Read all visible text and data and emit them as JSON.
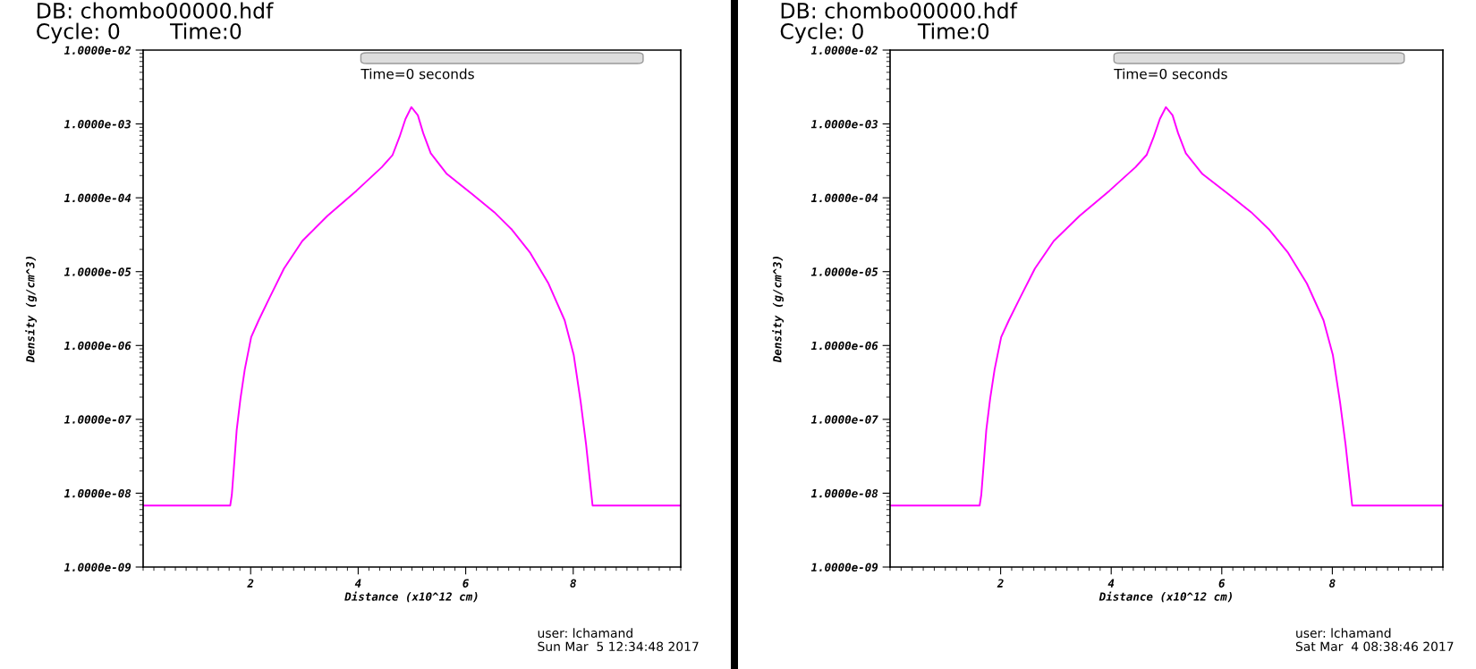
{
  "chart_data": [
    {
      "type": "line",
      "xlabel": "Distance (x10^12 cm)",
      "ylabel": "Density (g/cm^3)",
      "log": "y",
      "grid": false,
      "legend": false,
      "marker": "none",
      "line_style": "solid",
      "xlim": [
        0,
        10
      ],
      "xticks": [
        2,
        4,
        6,
        8
      ],
      "ylim": [
        1e-09,
        0.01
      ],
      "yticks": [
        {
          "value": 1e-09,
          "label": "1.0000e-09"
        },
        {
          "value": 1e-08,
          "label": "1.0000e-08"
        },
        {
          "value": 1e-07,
          "label": "1.0000e-07"
        },
        {
          "value": 1e-06,
          "label": "1.0000e-06"
        },
        {
          "value": 1e-05,
          "label": "1.0000e-05"
        },
        {
          "value": 0.0001,
          "label": "1.0000e-04"
        },
        {
          "value": 0.001,
          "label": "1.0000e-03"
        },
        {
          "value": 0.01,
          "label": "1.0000e-02"
        }
      ],
      "x": [
        0,
        1.62,
        1.65,
        1.69,
        1.74,
        1.81,
        1.89,
        2.01,
        2.15,
        2.35,
        2.62,
        2.96,
        3.43,
        3.97,
        4.44,
        4.64,
        4.77,
        4.88,
        4.99,
        5.11,
        5.21,
        5.35,
        5.65,
        6.12,
        6.53,
        6.86,
        7.2,
        7.54,
        7.84,
        8.01,
        8.14,
        8.24,
        8.31,
        8.36,
        10
      ],
      "series": [
        {
          "color": "#ff00ff",
          "values": [
            6.8e-09,
            6.8e-09,
            9.5e-09,
            2.3e-08,
            7.1e-08,
            1.9e-07,
            4.7e-07,
            1.3e-06,
            2.2e-06,
            4.4e-06,
            1.1e-05,
            2.6e-05,
            5.7e-05,
            0.000125,
            0.00026,
            0.00038,
            0.00067,
            0.00117,
            0.00169,
            0.00131,
            0.00075,
            0.0004,
            0.00021,
            0.000112,
            6.4e-05,
            3.7e-05,
            1.8e-05,
            6.9e-06,
            2.2e-06,
            7.4e-07,
            1.7e-07,
            4.5e-08,
            1.5e-08,
            6.8e-09,
            6.8e-09
          ]
        }
      ],
      "annotations": [
        "DB: chombo00000.hdf",
        "Cycle: 0",
        "Time:0",
        "Time=0 seconds",
        "user: lchamand",
        "Sun Mar  5 12:34:48 2017"
      ]
    },
    {
      "type": "line",
      "xlabel": "Distance (x10^12 cm)",
      "ylabel": "Density (g/cm^3)",
      "log": "y",
      "grid": false,
      "legend": false,
      "marker": "none",
      "line_style": "solid",
      "xlim": [
        0,
        10
      ],
      "xticks": [
        2,
        4,
        6,
        8
      ],
      "ylim": [
        1e-09,
        0.01
      ],
      "yticks": [
        {
          "value": 1e-09,
          "label": "1.0000e-09"
        },
        {
          "value": 1e-08,
          "label": "1.0000e-08"
        },
        {
          "value": 1e-07,
          "label": "1.0000e-07"
        },
        {
          "value": 1e-06,
          "label": "1.0000e-06"
        },
        {
          "value": 1e-05,
          "label": "1.0000e-05"
        },
        {
          "value": 0.0001,
          "label": "1.0000e-04"
        },
        {
          "value": 0.001,
          "label": "1.0000e-03"
        },
        {
          "value": 0.01,
          "label": "1.0000e-02"
        }
      ],
      "x": [
        0,
        1.62,
        1.65,
        1.69,
        1.74,
        1.81,
        1.89,
        2.01,
        2.15,
        2.35,
        2.62,
        2.96,
        3.43,
        3.97,
        4.44,
        4.64,
        4.77,
        4.88,
        4.99,
        5.11,
        5.21,
        5.35,
        5.65,
        6.12,
        6.53,
        6.86,
        7.2,
        7.54,
        7.84,
        8.01,
        8.14,
        8.24,
        8.31,
        8.36,
        10
      ],
      "series": [
        {
          "color": "#ff00ff",
          "values": [
            6.8e-09,
            6.8e-09,
            9.5e-09,
            2.3e-08,
            7.1e-08,
            1.9e-07,
            4.7e-07,
            1.3e-06,
            2.2e-06,
            4.4e-06,
            1.1e-05,
            2.6e-05,
            5.7e-05,
            0.000125,
            0.00026,
            0.00038,
            0.00067,
            0.00117,
            0.00169,
            0.00131,
            0.00075,
            0.0004,
            0.00021,
            0.000112,
            6.4e-05,
            3.7e-05,
            1.8e-05,
            6.9e-06,
            2.2e-06,
            7.4e-07,
            1.7e-07,
            4.5e-08,
            1.5e-08,
            6.8e-09,
            6.8e-09
          ]
        }
      ],
      "annotations": [
        "DB: chombo00000.hdf",
        "Cycle: 0",
        "Time:0",
        "Time=0 seconds",
        "user: lchamand",
        "Sat Mar  4 08:38:46 2017"
      ]
    }
  ]
}
